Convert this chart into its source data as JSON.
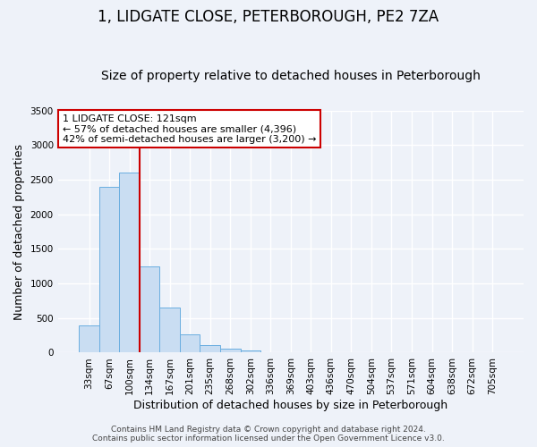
{
  "title": "1, LIDGATE CLOSE, PETERBOROUGH, PE2 7ZA",
  "subtitle": "Size of property relative to detached houses in Peterborough",
  "xlabel": "Distribution of detached houses by size in Peterborough",
  "ylabel": "Number of detached properties",
  "categories": [
    "33sqm",
    "67sqm",
    "100sqm",
    "134sqm",
    "167sqm",
    "201sqm",
    "235sqm",
    "268sqm",
    "302sqm",
    "336sqm",
    "369sqm",
    "403sqm",
    "436sqm",
    "470sqm",
    "504sqm",
    "537sqm",
    "571sqm",
    "604sqm",
    "638sqm",
    "672sqm",
    "705sqm"
  ],
  "values": [
    400,
    2400,
    2600,
    1250,
    650,
    260,
    110,
    55,
    30,
    0,
    0,
    0,
    0,
    0,
    0,
    0,
    0,
    0,
    0,
    0,
    0
  ],
  "bar_color": "#c9ddf2",
  "bar_edge_color": "#6aaee0",
  "vline_x": 2.5,
  "vline_color": "#cc0000",
  "annotation_line1": "1 LIDGATE CLOSE: 121sqm",
  "annotation_line2": "← 57% of detached houses are smaller (4,396)",
  "annotation_line3": "42% of semi-detached houses are larger (3,200) →",
  "annotation_box_color": "#ffffff",
  "annotation_box_edge": "#cc0000",
  "ylim": [
    0,
    3500
  ],
  "yticks": [
    0,
    500,
    1000,
    1500,
    2000,
    2500,
    3000,
    3500
  ],
  "footer1": "Contains HM Land Registry data © Crown copyright and database right 2024.",
  "footer2": "Contains public sector information licensed under the Open Government Licence v3.0.",
  "background_color": "#eef2f9",
  "plot_bg_color": "#eef2f9",
  "grid_color": "#ffffff",
  "title_fontsize": 12,
  "subtitle_fontsize": 10,
  "axis_label_fontsize": 9,
  "tick_fontsize": 7.5,
  "annotation_fontsize": 8,
  "footer_fontsize": 6.5
}
